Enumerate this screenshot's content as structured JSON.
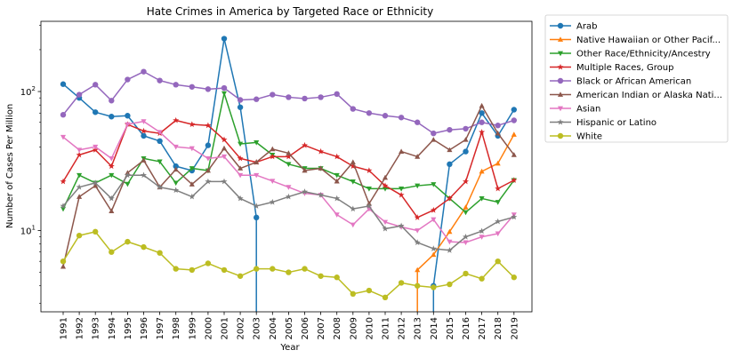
{
  "chart_data": {
    "type": "line",
    "title": "Hate Crimes in America by Targeted Race or Ethnicity",
    "xlabel": "Year",
    "ylabel": "Number of Cases Per Million",
    "yscale": "log",
    "ylim": [
      2.6,
      320
    ],
    "yticks": [
      {
        "value": 10,
        "label": "10¹",
        "base": "10",
        "exp": "1"
      },
      {
        "value": 100,
        "label": "10²",
        "base": "10",
        "exp": "2"
      }
    ],
    "grid": false,
    "legend_position": "outside-right",
    "x": [
      1991,
      1992,
      1993,
      1994,
      1995,
      1996,
      1997,
      1998,
      1999,
      2000,
      2001,
      2002,
      2003,
      2004,
      2005,
      2006,
      2007,
      2008,
      2009,
      2010,
      2011,
      2012,
      2013,
      2014,
      2015,
      2016,
      2017,
      2018,
      2019
    ],
    "series": [
      {
        "name": "Arab",
        "legend_label": "Arab",
        "color": "#1f77b4",
        "marker": "circle",
        "values": [
          113,
          90,
          71,
          66,
          67,
          48,
          44,
          29,
          27,
          41,
          240,
          77,
          12.4,
          null,
          null,
          null,
          null,
          null,
          null,
          null,
          null,
          null,
          null,
          4,
          30,
          37,
          70,
          48,
          74
        ]
      },
      {
        "name": "Native Hawaiian or Other Pacific Islander",
        "legend_label": "Native Hawaiian or Other Pacif...",
        "color": "#ff7f0e",
        "marker": "triangle-up",
        "values": [
          null,
          null,
          null,
          null,
          null,
          null,
          null,
          null,
          null,
          null,
          null,
          null,
          null,
          null,
          null,
          null,
          null,
          null,
          null,
          null,
          null,
          null,
          5.2,
          6.7,
          9.8,
          14.7,
          26.6,
          30.4,
          49
        ]
      },
      {
        "name": "Other Race/Ethnicity/Ancestry",
        "legend_label": "Other Race/Ethnicity/Ancestry",
        "color": "#2ca02c",
        "marker": "triangle-down",
        "values": [
          14.3,
          25,
          22,
          25,
          21.6,
          33,
          31.3,
          22,
          28,
          27,
          97,
          42,
          43,
          35,
          30,
          28,
          28,
          25,
          22.5,
          20,
          20,
          20,
          21,
          21.5,
          17,
          13.5,
          17,
          16,
          23
        ]
      },
      {
        "name": "Multiple Races, Group",
        "legend_label": "Multiple Races, Group",
        "color": "#d62728",
        "marker": "star",
        "values": [
          22.5,
          35,
          38,
          29,
          58,
          52,
          50,
          62,
          58,
          57,
          45,
          33,
          31,
          34,
          34,
          41,
          37,
          34,
          29,
          27,
          21,
          18,
          12.4,
          14,
          17,
          22.5,
          51,
          20,
          23
        ]
      },
      {
        "name": "Black or African American",
        "legend_label": "Black or African American",
        "color": "#9467bd",
        "marker": "circle",
        "values": [
          68,
          95,
          112,
          86,
          122,
          139,
          120,
          112,
          108,
          104,
          106,
          87,
          88,
          95,
          91,
          89,
          91,
          96,
          75,
          70,
          67,
          65,
          60,
          50,
          53,
          54,
          60,
          57,
          62
        ]
      },
      {
        "name": "American Indian or Alaska Native",
        "legend_label": "American Indian or Alaska Nati...",
        "color": "#8c564b",
        "marker": "triangle-up",
        "values": [
          5.5,
          17.5,
          21,
          13.8,
          26,
          32,
          20.5,
          27.5,
          21.5,
          27,
          39,
          28,
          31,
          38.5,
          36,
          27,
          28,
          22.6,
          31,
          15.6,
          24,
          37,
          34,
          45,
          38,
          45,
          79,
          50,
          35
        ]
      },
      {
        "name": "Asian",
        "legend_label": "Asian",
        "color": "#e377c2",
        "marker": "triangle-down",
        "values": [
          47,
          38,
          40,
          33,
          58,
          61,
          51,
          40,
          39,
          33,
          34,
          25,
          25,
          22.7,
          20.5,
          18.5,
          18,
          13,
          11,
          14.3,
          11.5,
          10.6,
          10,
          12,
          8.3,
          8.2,
          9,
          9.5,
          13
        ]
      },
      {
        "name": "Hispanic or Latino",
        "legend_label": "Hispanic or Latino",
        "color": "#7f7f7f",
        "marker": "star",
        "values": [
          15,
          20.5,
          22,
          17,
          25,
          25,
          20.5,
          19.5,
          17.5,
          22.5,
          22.5,
          17,
          15,
          16,
          17.5,
          19,
          18,
          17,
          14.3,
          15,
          10.3,
          10.8,
          8.2,
          7.4,
          7.2,
          9,
          9.9,
          11.6,
          12.5
        ]
      },
      {
        "name": "White",
        "legend_label": "White",
        "color": "#bcbd22",
        "marker": "circle",
        "values": [
          6,
          9.2,
          9.8,
          7,
          8.3,
          7.6,
          6.9,
          5.3,
          5.2,
          5.8,
          5.2,
          4.7,
          5.3,
          5.3,
          5,
          5.3,
          4.7,
          4.6,
          3.5,
          3.7,
          3.3,
          4.2,
          4,
          3.9,
          4.1,
          4.9,
          4.5,
          6,
          4.6
        ]
      }
    ]
  }
}
